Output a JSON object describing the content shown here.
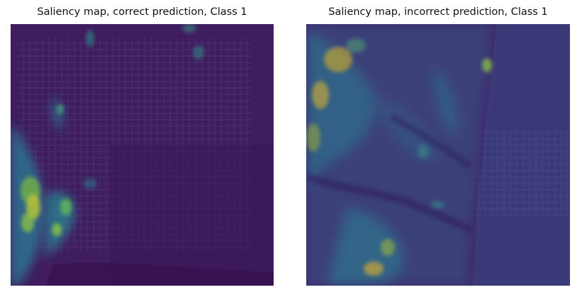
{
  "panels": [
    {
      "title": "Saliency map, correct prediction, Class 1",
      "colormap": "viridis",
      "colors": {
        "background": "#3f1e5e",
        "low": "#440154",
        "mid": "#21918c",
        "high": "#fde725"
      }
    },
    {
      "title": "Saliency map, incorrect prediction, Class 1",
      "colormap": "viridis",
      "colors": {
        "background": "#3b2d6c",
        "low": "#440154",
        "mid": "#21918c",
        "high": "#fde725"
      }
    }
  ]
}
